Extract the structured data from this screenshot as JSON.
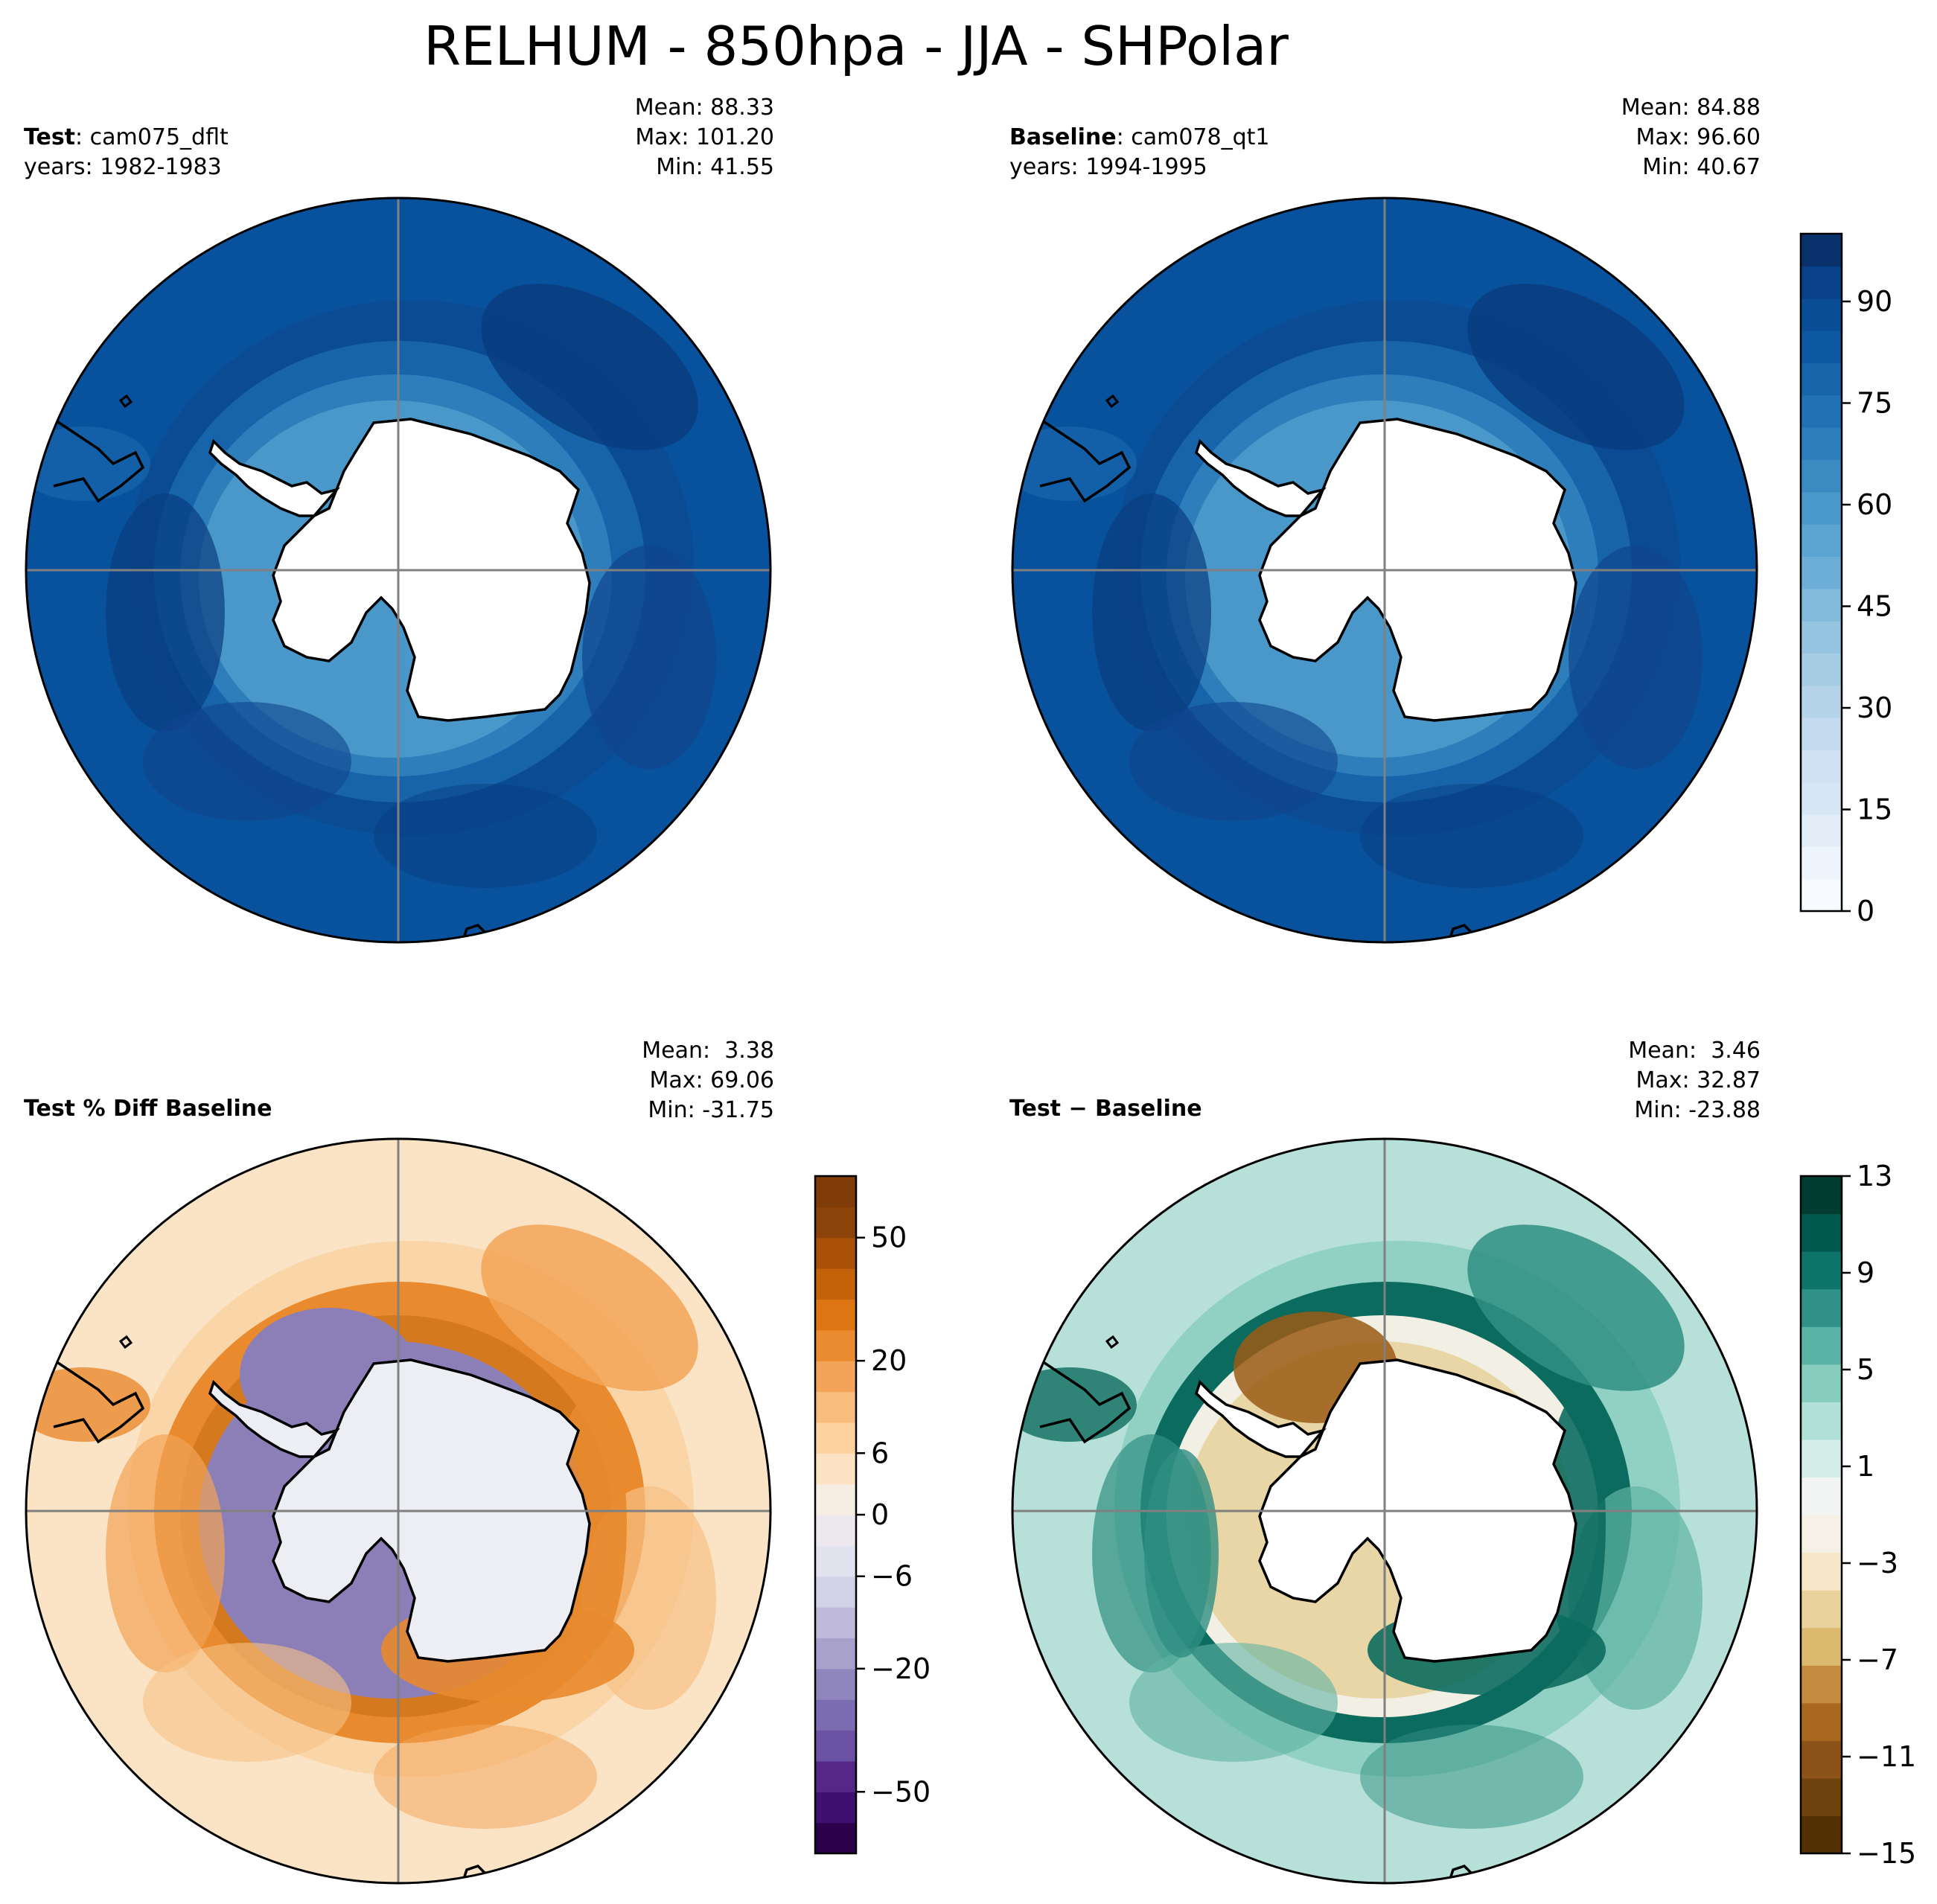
{
  "title": "RELHUM - 850hpa - JJA - SHPolar",
  "panels": [
    {
      "id": "test",
      "label_bold": "Test",
      "label_rest": ": cam075_dflt",
      "years": "years: 1982-1983",
      "stats": {
        "mean": "Mean: 88.33",
        "max": "Max: 101.20",
        "min": "Min: 41.55"
      },
      "palette": [
        "#f7fbff",
        "#08519c",
        "#0b4a94",
        "#10458d",
        "#083d7f",
        "#1764ab",
        "#2f7ebc",
        "#4a98c9",
        "#6baed6"
      ]
    },
    {
      "id": "baseline",
      "label_bold": "Baseline",
      "label_rest": ": cam078_qt1",
      "years": "years: 1994-1995",
      "stats": {
        "mean": "Mean: 84.88",
        "max": "Max: 96.60",
        "min": "Min: 40.67"
      },
      "palette": [
        "#f7fbff",
        "#08519c",
        "#0b4a94",
        "#10458d",
        "#083d7f",
        "#1764ab",
        "#2f7ebc",
        "#4a98c9",
        "#6baed6"
      ]
    },
    {
      "id": "pctdiff",
      "label_bold": "Test % Diff Baseline",
      "label_rest": "",
      "years": "",
      "stats": {
        "mean": "Mean:  3.38",
        "max": "Max: 69.06",
        "min": "Min: -31.75"
      },
      "palette": [
        "#f4eeee",
        "#fbe3c5",
        "#f9d3a4",
        "#f6c184",
        "#f2a457",
        "#e88a2d",
        "#d4791e",
        "#8c7fb8",
        "#d9d7ea"
      ]
    },
    {
      "id": "diff",
      "label_bold": "Test",
      "label_rest": " − Baseline",
      "years": "",
      "stats": {
        "mean": "Mean:  3.46",
        "max": "Max: 32.87",
        "min": "Min: -23.88"
      },
      "palette": [
        "#dcefeb",
        "#b7e1d8",
        "#8ccfc1",
        "#5fb3a4",
        "#2f8f82",
        "#0c6b5f",
        "#f2efe4",
        "#e9d6a6",
        "#9b5b15"
      ]
    }
  ],
  "colorbars": [
    {
      "id": "relhum",
      "colors": [
        "#f7fbff",
        "#edf4fc",
        "#e2edf8",
        "#d7e6f5",
        "#cfe1f2",
        "#c4daee",
        "#b5d4e9",
        "#a5cce3",
        "#94c4df",
        "#81badb",
        "#6daed6",
        "#5ba3d0",
        "#4a98c9",
        "#3b8bc2",
        "#2e7ebc",
        "#2271b5",
        "#1764ab",
        "#0d58a1",
        "#084d96",
        "#08418a",
        "#08306b"
      ],
      "ticks": [
        "0",
        "15",
        "30",
        "45",
        "60",
        "75",
        "90"
      ],
      "tick_values": [
        0,
        15,
        30,
        45,
        60,
        75,
        90
      ],
      "vmin": 0,
      "vmax": 100
    },
    {
      "id": "pct",
      "colors": [
        "#2d004b",
        "#3f0f72",
        "#542788",
        "#6a51a3",
        "#7b6bb0",
        "#8f86bd",
        "#a7a1cb",
        "#bfb9da",
        "#d2d2e7",
        "#e2e2ef",
        "#ede7ee",
        "#f6ede3",
        "#fde3c3",
        "#fdd29f",
        "#f8bd7c",
        "#f4a459",
        "#eb8b30",
        "#dd7512",
        "#c4620a",
        "#a95207",
        "#8c430a",
        "#7f3b08"
      ],
      "ticks": [
        "−50",
        "−20",
        "−6",
        "0",
        "6",
        "20",
        "50"
      ],
      "tick_index": [
        2,
        6,
        9,
        11,
        13,
        16,
        20
      ],
      "n": 22
    },
    {
      "id": "diffbar",
      "colors": [
        "#543005",
        "#6f410c",
        "#8c5217",
        "#a8681f",
        "#c48a3e",
        "#dbba70",
        "#ead29c",
        "#f5e7c8",
        "#f6f0e6",
        "#f2f5f4",
        "#d5ede8",
        "#b0e0d6",
        "#86cdbe",
        "#5ab3a4",
        "#2f9187",
        "#0e7469",
        "#01584c",
        "#003c30"
      ],
      "ticks": [
        "−15",
        "−11",
        "−7",
        "−3",
        "1",
        "5",
        "9",
        "13"
      ],
      "tick_values": [
        -15,
        -11,
        -7,
        -3,
        1,
        5,
        9,
        13
      ],
      "vmin": -15,
      "vmax": 13
    }
  ]
}
